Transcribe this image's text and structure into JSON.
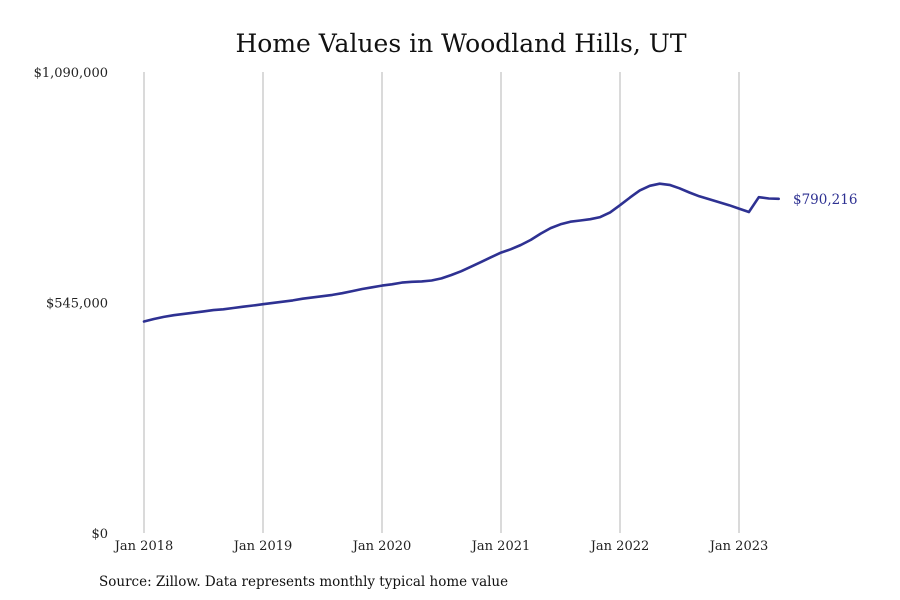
{
  "chart_data": {
    "type": "line",
    "title": "Home Values in Woodland Hills, UT",
    "source": "Source: Zillow. Data represents monthly typical home value",
    "xlabel": "",
    "ylabel": "",
    "ylim": [
      0,
      1090000
    ],
    "y_ticks": [
      {
        "value": 0,
        "label": "$0"
      },
      {
        "value": 545000,
        "label": "$545,000"
      },
      {
        "value": 1090000,
        "label": "$1,090,000"
      }
    ],
    "x_ticks": [
      {
        "value": "2018-01",
        "label": "Jan 2018"
      },
      {
        "value": "2019-01",
        "label": "Jan 2019"
      },
      {
        "value": "2020-01",
        "label": "Jan 2020"
      },
      {
        "value": "2021-01",
        "label": "Jan 2021"
      },
      {
        "value": "2022-01",
        "label": "Jan 2022"
      },
      {
        "value": "2023-01",
        "label": "Jan 2023"
      }
    ],
    "grid": "vertical",
    "line_color": "#2e3192",
    "end_label": "$790,216",
    "series": [
      {
        "x": [
          "2018-01",
          "2018-02",
          "2018-03",
          "2018-04",
          "2018-05",
          "2018-06",
          "2018-07",
          "2018-08",
          "2018-09",
          "2018-10",
          "2018-11",
          "2018-12",
          "2019-01",
          "2019-02",
          "2019-03",
          "2019-04",
          "2019-05",
          "2019-06",
          "2019-07",
          "2019-08",
          "2019-09",
          "2019-10",
          "2019-11",
          "2019-12",
          "2020-01",
          "2020-02",
          "2020-03",
          "2020-04",
          "2020-05",
          "2020-06",
          "2020-07",
          "2020-08",
          "2020-09",
          "2020-10",
          "2020-11",
          "2020-12",
          "2021-01",
          "2021-02",
          "2021-03",
          "2021-04",
          "2021-05",
          "2021-06",
          "2021-07",
          "2021-08",
          "2021-09",
          "2021-10",
          "2021-11",
          "2021-12",
          "2022-01",
          "2022-02",
          "2022-03",
          "2022-04",
          "2022-05",
          "2022-06",
          "2022-07",
          "2022-08",
          "2022-09",
          "2022-10",
          "2022-11",
          "2022-12",
          "2023-01",
          "2023-02",
          "2023-03",
          "2023-04",
          "2023-05"
        ],
        "values": [
          500000,
          506000,
          511000,
          515000,
          518000,
          521000,
          524000,
          527000,
          529000,
          532000,
          535000,
          538000,
          541000,
          544000,
          547000,
          550000,
          554000,
          557000,
          560000,
          563000,
          567000,
          572000,
          577000,
          581000,
          585000,
          588000,
          592000,
          594000,
          595000,
          597000,
          602000,
          610000,
          619000,
          630000,
          641000,
          652000,
          663000,
          671000,
          681000,
          693000,
          708000,
          721000,
          730000,
          736000,
          739000,
          742000,
          747000,
          758000,
          775000,
          793000,
          810000,
          821000,
          826000,
          823000,
          815000,
          805000,
          796000,
          789000,
          782000,
          775000,
          767000,
          759000,
          794000,
          791000,
          790216
        ]
      }
    ]
  }
}
